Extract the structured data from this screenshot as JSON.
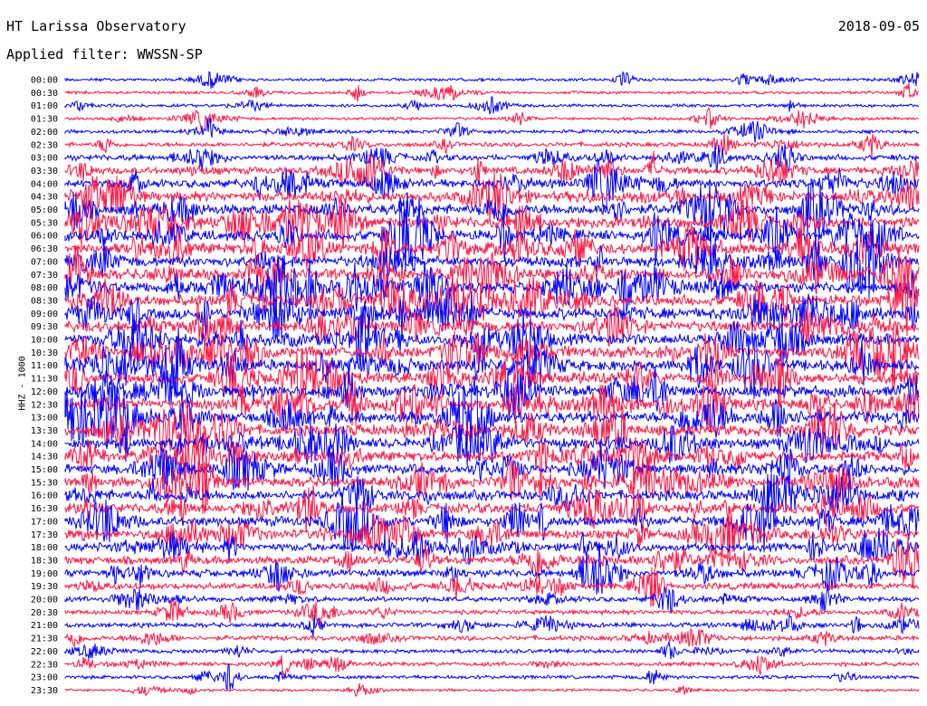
{
  "header": {
    "station": "HT Larissa Observatory",
    "date": "2018-09-05",
    "filter": "Applied filter: WWSSN-SP"
  },
  "chart_data": {
    "type": "line",
    "ylabel": "HHZ - 1000",
    "colors": {
      "odd": "#0000ff",
      "even": "#ff1744"
    },
    "rows": [
      {
        "label": "00:00",
        "activity": 0.12
      },
      {
        "label": "00:30",
        "activity": 0.1
      },
      {
        "label": "01:00",
        "activity": 0.14
      },
      {
        "label": "01:30",
        "activity": 0.12
      },
      {
        "label": "02:00",
        "activity": 0.18
      },
      {
        "label": "02:30",
        "activity": 0.28
      },
      {
        "label": "03:00",
        "activity": 0.42
      },
      {
        "label": "03:30",
        "activity": 0.55
      },
      {
        "label": "04:00",
        "activity": 0.7
      },
      {
        "label": "04:30",
        "activity": 0.85
      },
      {
        "label": "05:00",
        "activity": 0.9
      },
      {
        "label": "05:30",
        "activity": 1.0
      },
      {
        "label": "06:00",
        "activity": 0.95
      },
      {
        "label": "06:30",
        "activity": 0.95
      },
      {
        "label": "07:00",
        "activity": 0.9
      },
      {
        "label": "07:30",
        "activity": 0.95
      },
      {
        "label": "08:00",
        "activity": 0.95
      },
      {
        "label": "08:30",
        "activity": 0.95
      },
      {
        "label": "09:00",
        "activity": 1.0
      },
      {
        "label": "09:30",
        "activity": 1.0
      },
      {
        "label": "10:00",
        "activity": 1.0
      },
      {
        "label": "10:30",
        "activity": 1.0
      },
      {
        "label": "11:00",
        "activity": 1.0
      },
      {
        "label": "11:30",
        "activity": 1.0
      },
      {
        "label": "12:00",
        "activity": 1.0
      },
      {
        "label": "12:30",
        "activity": 1.0
      },
      {
        "label": "13:00",
        "activity": 1.0
      },
      {
        "label": "13:30",
        "activity": 0.95
      },
      {
        "label": "14:00",
        "activity": 0.9
      },
      {
        "label": "14:30",
        "activity": 0.85
      },
      {
        "label": "15:00",
        "activity": 0.85
      },
      {
        "label": "15:30",
        "activity": 0.85
      },
      {
        "label": "16:00",
        "activity": 0.85
      },
      {
        "label": "16:30",
        "activity": 0.85
      },
      {
        "label": "17:00",
        "activity": 0.85
      },
      {
        "label": "17:30",
        "activity": 0.75
      },
      {
        "label": "18:00",
        "activity": 0.65
      },
      {
        "label": "18:30",
        "activity": 0.65
      },
      {
        "label": "19:00",
        "activity": 0.6
      },
      {
        "label": "19:30",
        "activity": 0.5
      },
      {
        "label": "20:00",
        "activity": 0.35
      },
      {
        "label": "20:30",
        "activity": 0.28
      },
      {
        "label": "21:00",
        "activity": 0.3
      },
      {
        "label": "21:30",
        "activity": 0.32
      },
      {
        "label": "22:00",
        "activity": 0.22
      },
      {
        "label": "22:30",
        "activity": 0.25
      },
      {
        "label": "23:00",
        "activity": 0.18
      },
      {
        "label": "23:30",
        "activity": 0.08
      }
    ]
  }
}
